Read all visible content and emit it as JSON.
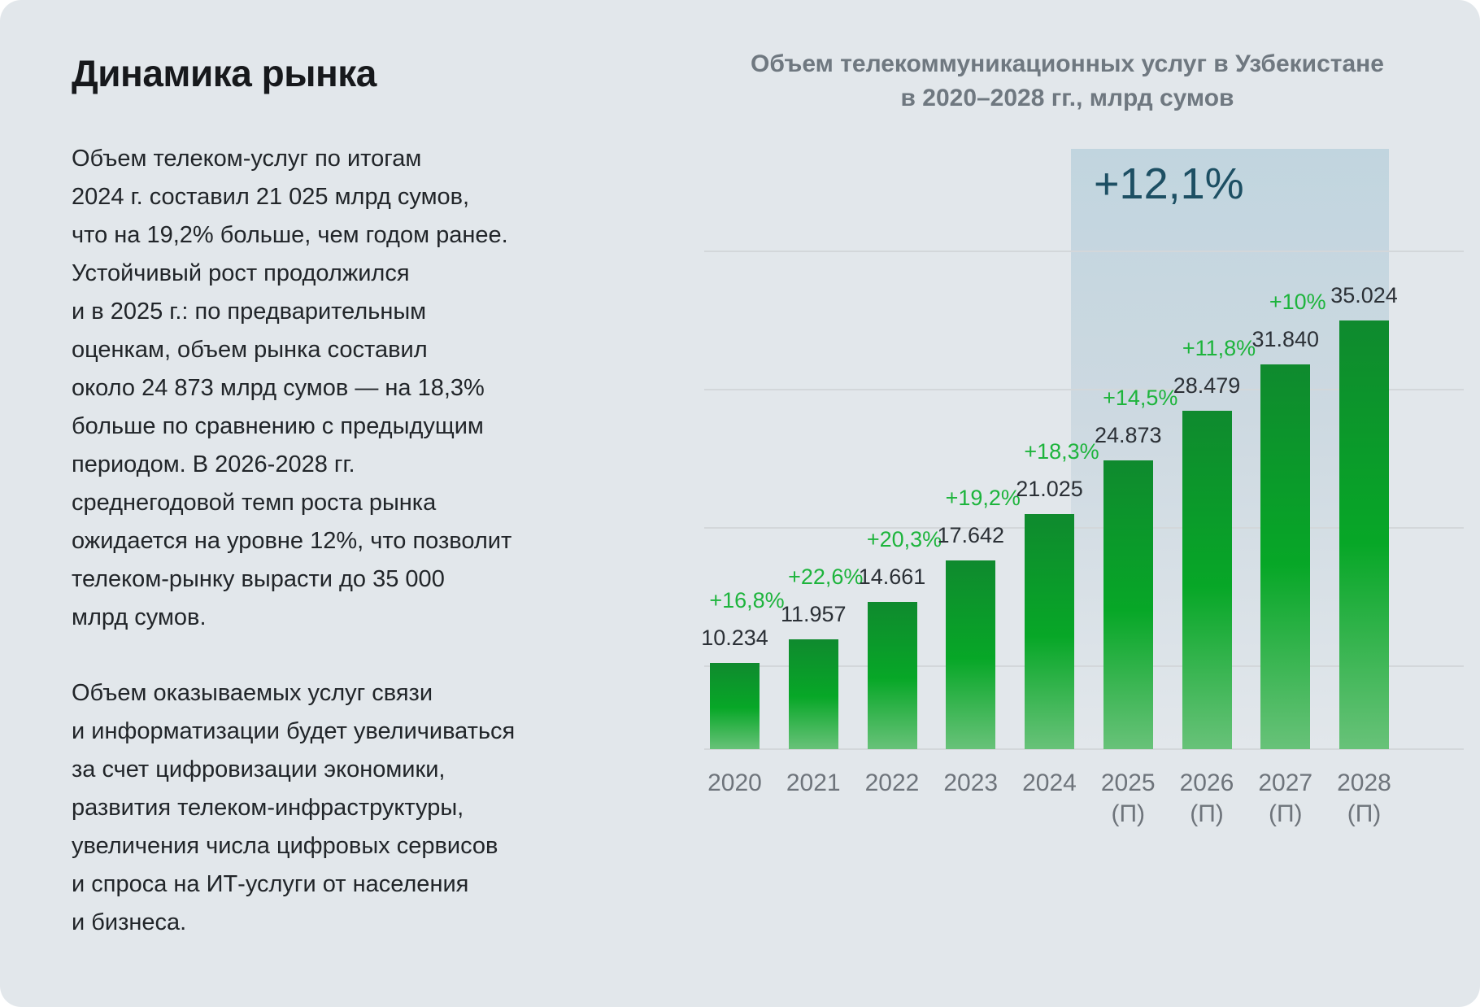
{
  "theme": {
    "card_bg": "#e2e7eb",
    "text_dark": "#17191c",
    "text_body": "#212529",
    "chart_title_color": "#6f7880",
    "axis_label_color": "#6e747b",
    "value_label_color": "#2b3036",
    "growth_green": "#1db43c",
    "forecast_teal": "#1d4f63",
    "gridline_color": "#d3d7da",
    "bar_gradient_top": "#0f8a2e",
    "bar_gradient_mid": "#07a727",
    "bar_gradient_bottom": "#68c279",
    "band_gradient_top": "#c1d5df",
    "band_gradient_mid": "#cdd9e1"
  },
  "left_panel": {
    "title": "Динамика рынка",
    "paragraph_1": "Объем телеком-услуг по итогам\n2024 г. составил 21 025 млрд сумов,\nчто на 19,2% больше, чем годом ранее.\nУстойчивый рост продолжился\nи в 2025 г.: по предварительным\nоценкам, объем рынка составил\nоколо 24 873 млрд сумов — на 18,3%\nбольше по сравнению с предыдущим\nпериодом. В 2026-2028 гг.\nсреднегодовой темп роста рынка\nожидается на уровне 12%, что позволит\nтелеком-рынку вырасти до 35 000\nмлрд сумов.",
    "paragraph_2": "Объем оказываемых услуг связи\nи информатизации будет увеличиваться\nза счет цифровизации экономики,\nразвития телеком-инфраструктуры,\nувеличения числа цифровых сервисов\nи спроса на ИТ-услуги от населения\nи бизнеса."
  },
  "chart_data": {
    "type": "bar",
    "title": "Объем телекоммуникационных услуг в Узбекистане\nв 2020–2028 гг., млрд сумов",
    "unit": "млрд сумов",
    "categories": [
      "2020",
      "2021",
      "2022",
      "2023",
      "2024",
      "2025 (П)",
      "2026 (П)",
      "2027 (П)",
      "2028 (П)"
    ],
    "values": [
      10234,
      11957,
      14661,
      17642,
      21025,
      24873,
      28479,
      31840,
      35024
    ],
    "value_labels": [
      "10.234",
      "11.957",
      "14.661",
      "17.642",
      "21.025",
      "24.873",
      "28.479",
      "31.840",
      "35.024"
    ],
    "growth_labels": [
      "+16,8%",
      "+22,6%",
      "+20,3%",
      "+19,2%",
      "+18,3%",
      "+14,5%",
      "+11,8%",
      "+10%",
      null
    ],
    "forecast_flags": [
      false,
      false,
      false,
      false,
      false,
      true,
      true,
      true,
      true
    ],
    "forecast_mark": "(П)",
    "forecast_band_label": "+12,1%",
    "ylim": [
      4000,
      49000
    ],
    "gridline_values": [
      10000,
      20000,
      30000,
      40000
    ],
    "grid": true,
    "legend": null
  }
}
